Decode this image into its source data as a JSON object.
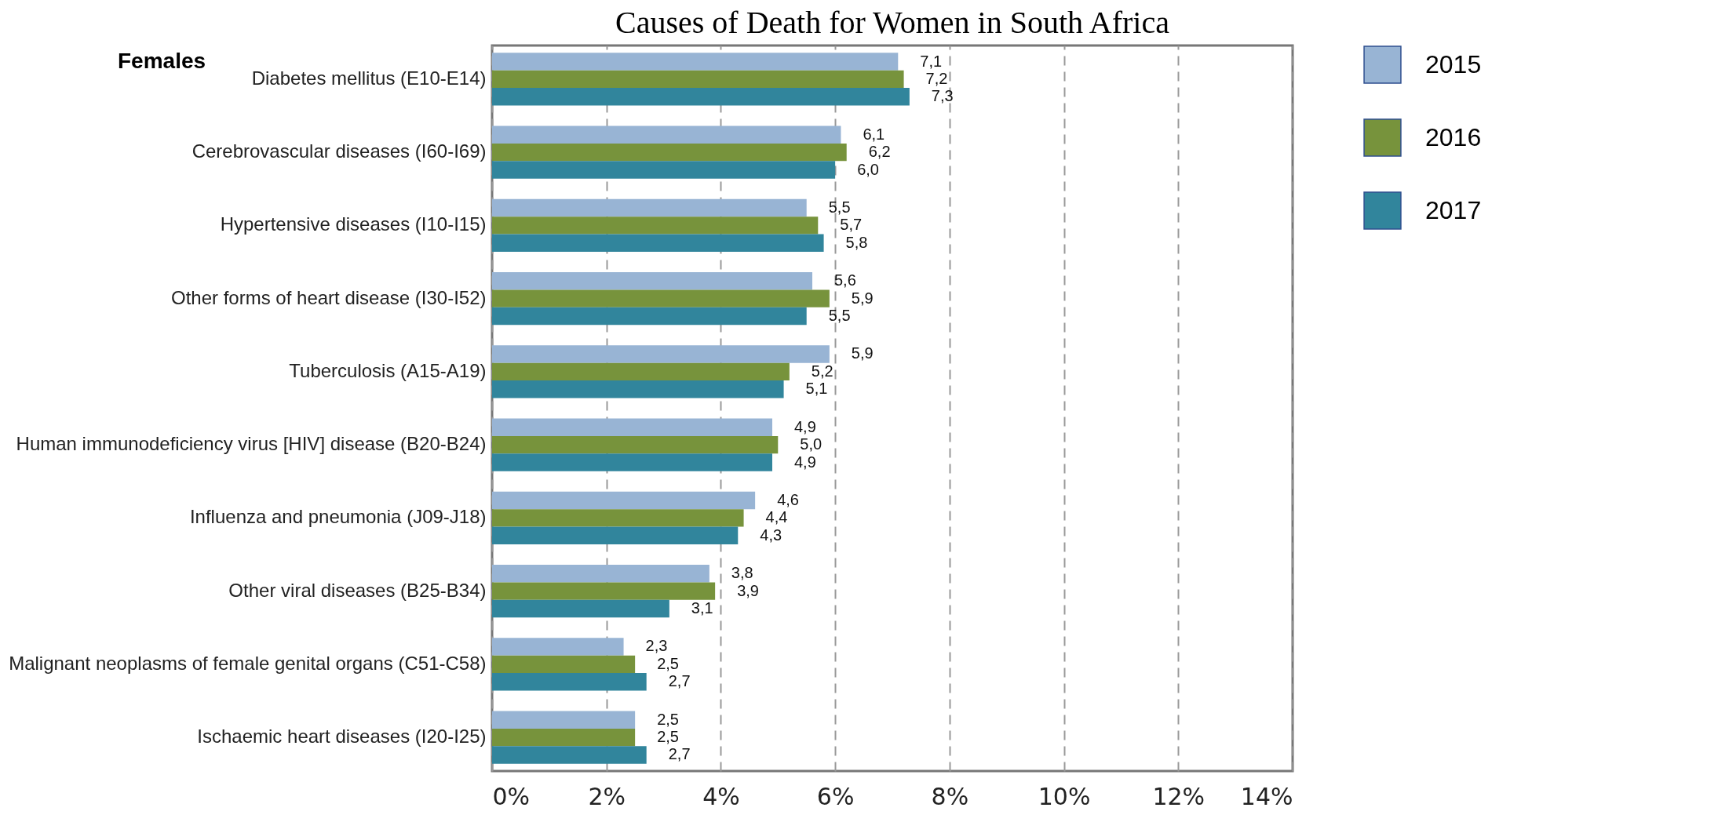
{
  "chart_data": {
    "type": "bar",
    "orientation": "horizontal",
    "title": "Causes of Death for Women in South Africa",
    "annotations": [
      "Females"
    ],
    "categories": [
      "Diabetes mellitus (E10-E14)",
      "Cerebrovascular diseases (I60-I69)",
      "Hypertensive diseases (I10-I15)",
      "Other forms of heart disease (I30-I52)",
      "Tuberculosis (A15-A19)",
      "Human immunodeficiency virus [HIV] disease (B20-B24)",
      "Influenza and pneumonia (J09-J18)",
      "Other viral diseases (B25-B34)",
      "Malignant neoplasms of female genital organs (C51-C58)",
      "Ischaemic heart diseases (I20-I25)"
    ],
    "series": [
      {
        "name": "2015",
        "color": "#98b4d4",
        "values": [
          7.1,
          6.1,
          5.5,
          5.6,
          5.9,
          4.9,
          4.6,
          3.8,
          2.3,
          2.5
        ],
        "value_labels": [
          "7,1",
          "6,1",
          "5,5",
          "5,6",
          "5,9",
          "4,9",
          "4,6",
          "3,8",
          "2,3",
          "2,5"
        ]
      },
      {
        "name": "2016",
        "color": "#77933c",
        "values": [
          7.2,
          6.2,
          5.7,
          5.9,
          5.2,
          5.0,
          4.4,
          3.9,
          2.5,
          2.5
        ],
        "value_labels": [
          "7,2",
          "6,2",
          "5,7",
          "5,9",
          "5,2",
          "5,0",
          "4,4",
          "3,9",
          "2,5",
          "2,5"
        ]
      },
      {
        "name": "2017",
        "color": "#31859c",
        "values": [
          7.3,
          6.0,
          5.8,
          5.5,
          5.1,
          4.9,
          4.3,
          3.1,
          2.7,
          2.7
        ],
        "value_labels": [
          "7,3",
          "6,0",
          "5,8",
          "5,5",
          "5,1",
          "4,9",
          "4,3",
          "3,1",
          "2,7",
          "2,7"
        ]
      }
    ],
    "xlim": [
      0,
      14
    ],
    "xticks": [
      {
        "value": 0,
        "label": "0%"
      },
      {
        "value": 2,
        "label": "2%"
      },
      {
        "value": 4,
        "label": "4%"
      },
      {
        "value": 6,
        "label": "6%"
      },
      {
        "value": 8,
        "label": "8%"
      },
      {
        "value": 10,
        "label": "10%"
      },
      {
        "value": 12,
        "label": "12%"
      },
      {
        "value": 14,
        "label": "14%"
      }
    ],
    "grid": "x",
    "legend": "right"
  }
}
